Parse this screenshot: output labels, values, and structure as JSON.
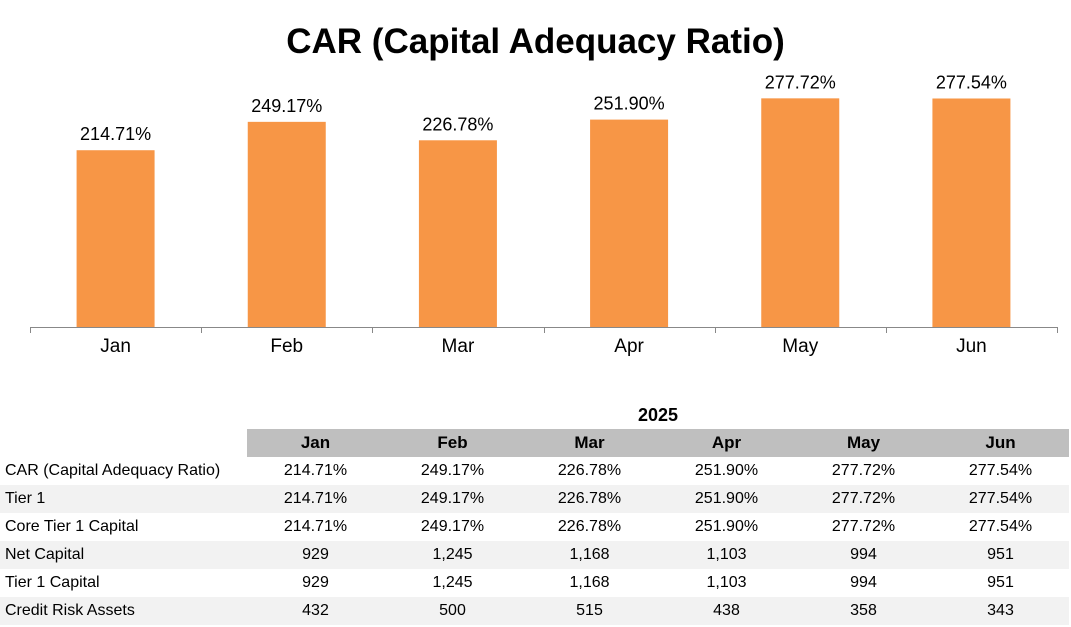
{
  "chart_data": {
    "type": "bar",
    "title": "CAR (Capital Adequacy Ratio)",
    "categories": [
      "Jan",
      "Feb",
      "Mar",
      "Apr",
      "May",
      "Jun"
    ],
    "values": [
      214.71,
      249.17,
      226.78,
      251.9,
      277.72,
      277.54
    ],
    "labels": [
      "214.71%",
      "249.17%",
      "226.78%",
      "251.90%",
      "277.72%",
      "277.54%"
    ],
    "xlabel": "",
    "ylabel": "",
    "ylim": [
      0,
      300
    ],
    "bar_color": "#f79646",
    "grid": false
  },
  "table": {
    "year": "2025",
    "columns": [
      "Jan",
      "Feb",
      "Mar",
      "Apr",
      "May",
      "Jun"
    ],
    "rows": [
      {
        "label": "CAR (Capital Adequacy Ratio)",
        "values": [
          "214.71%",
          "249.17%",
          "226.78%",
          "251.90%",
          "277.72%",
          "277.54%"
        ]
      },
      {
        "label": "Tier 1",
        "values": [
          "214.71%",
          "249.17%",
          "226.78%",
          "251.90%",
          "277.72%",
          "277.54%"
        ]
      },
      {
        "label": "Core Tier 1 Capital",
        "values": [
          "214.71%",
          "249.17%",
          "226.78%",
          "251.90%",
          "277.72%",
          "277.54%"
        ]
      },
      {
        "label": "Net Capital",
        "values": [
          "929",
          "1,245",
          "1,168",
          "1,103",
          "994",
          "951"
        ]
      },
      {
        "label": "Tier 1 Capital",
        "values": [
          "929",
          "1,245",
          "1,168",
          "1,103",
          "994",
          "951"
        ]
      },
      {
        "label": "Credit Risk Assets",
        "values": [
          "432",
          "500",
          "515",
          "438",
          "358",
          "343"
        ]
      }
    ]
  }
}
